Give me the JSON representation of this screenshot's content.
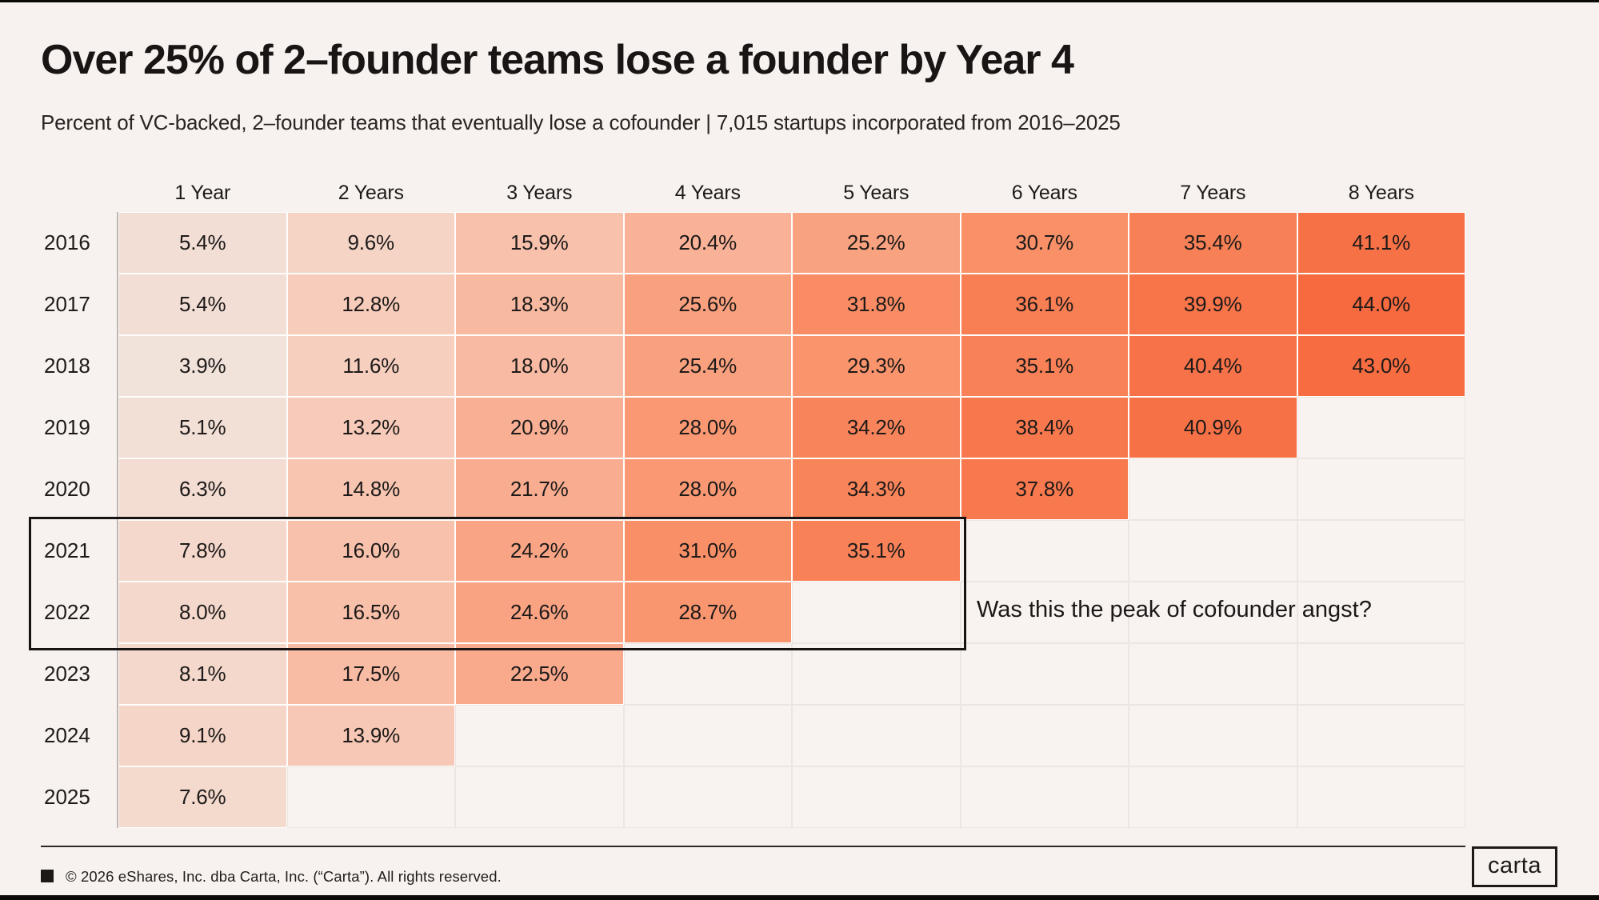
{
  "page": {
    "title": "Over 25% of 2–founder teams lose a founder by Year 4",
    "subtitle": "Percent of VC-backed, 2–founder teams that eventually lose a cofounder | 7,015 startups incorporated from 2016–2025",
    "background_color": "#f7f2ef"
  },
  "chart_data": {
    "type": "heatmap",
    "title": "Over 25% of 2–founder teams lose a founder by Year 4",
    "subtitle": "Percent of VC-backed, 2–founder teams that eventually lose a cofounder | 7,015 startups incorporated from 2016–2025",
    "unit": "%",
    "x_labels": [
      "1 Year",
      "2 Years",
      "3 Years",
      "4 Years",
      "5 Years",
      "6 Years",
      "7 Years",
      "8 Years"
    ],
    "y_labels": [
      "2016",
      "2017",
      "2018",
      "2019",
      "2020",
      "2021",
      "2022",
      "2023",
      "2024",
      "2025"
    ],
    "rows": [
      {
        "year": "2016",
        "values": [
          5.4,
          9.6,
          15.9,
          20.4,
          25.2,
          30.7,
          35.4,
          41.1
        ]
      },
      {
        "year": "2017",
        "values": [
          5.4,
          12.8,
          18.3,
          25.6,
          31.8,
          36.1,
          39.9,
          44.0
        ]
      },
      {
        "year": "2018",
        "values": [
          3.9,
          11.6,
          18.0,
          25.4,
          29.3,
          35.1,
          40.4,
          43.0
        ]
      },
      {
        "year": "2019",
        "values": [
          5.1,
          13.2,
          20.9,
          28.0,
          34.2,
          38.4,
          40.9
        ]
      },
      {
        "year": "2020",
        "values": [
          6.3,
          14.8,
          21.7,
          28.0,
          34.3,
          37.8
        ]
      },
      {
        "year": "2021",
        "values": [
          7.8,
          16.0,
          24.2,
          31.0,
          35.1
        ]
      },
      {
        "year": "2022",
        "values": [
          8.0,
          16.5,
          24.6,
          28.7
        ]
      },
      {
        "year": "2023",
        "values": [
          8.1,
          17.5,
          22.5
        ]
      },
      {
        "year": "2024",
        "values": [
          9.1,
          13.9
        ]
      },
      {
        "year": "2025",
        "values": [
          7.6
        ]
      }
    ],
    "color_scale": {
      "min_value": 3.9,
      "max_value": 44.0,
      "stops": [
        [
          0.0,
          "#f1e2da"
        ],
        [
          0.22,
          "#f7ccbb"
        ],
        [
          0.42,
          "#f9b095"
        ],
        [
          0.62,
          "#f9966f"
        ],
        [
          0.82,
          "#f87c51"
        ],
        [
          1.0,
          "#f7693f"
        ]
      ]
    },
    "highlight": {
      "years": [
        "2021",
        "2022"
      ],
      "through_column": "5 Years"
    },
    "annotation": "Was this the peak of cofounder angst?",
    "grid": "faint gridlines on empty cells",
    "legend_position": "none"
  },
  "footer": {
    "copyright": "© 2026 eShares, Inc. dba Carta, Inc. (“Carta”). All rights reserved.",
    "logo": "carta"
  }
}
